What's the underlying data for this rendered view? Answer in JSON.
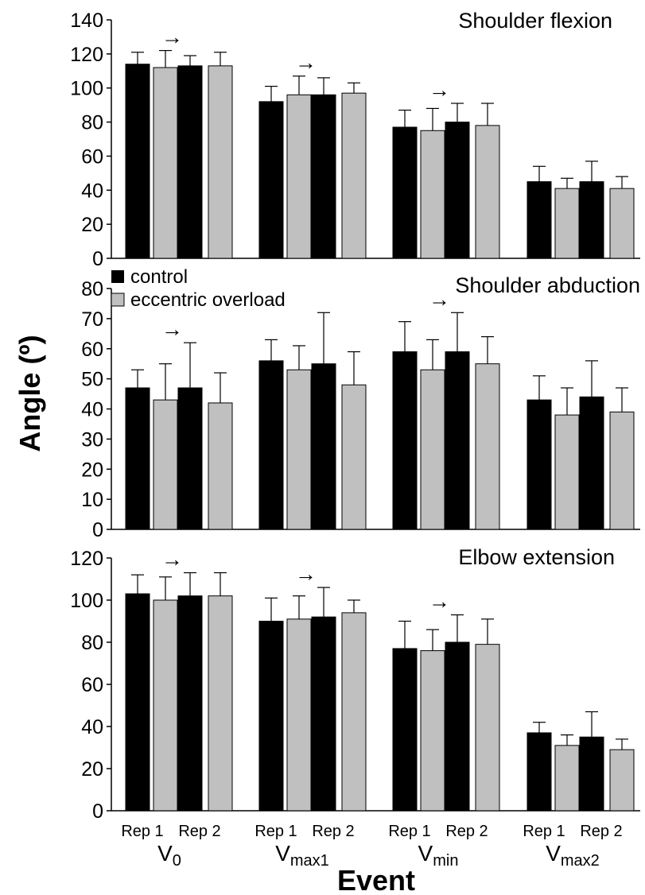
{
  "chart_data": {
    "type": "bar",
    "ylabel": "Angle (º)",
    "xlabel": "Event",
    "legend": {
      "placement": "top-left of middle panel",
      "entries": [
        {
          "label": "control",
          "color": "#000000"
        },
        {
          "label": "eccentric overload",
          "color": "#c0c0c0"
        }
      ]
    },
    "series_colors": [
      "#000000",
      "#c0c0c0"
    ],
    "rep_labels": [
      "Rep 1",
      "Rep 2"
    ],
    "groups": [
      {
        "main": "V",
        "sub": "0"
      },
      {
        "main": "V",
        "sub": "max1"
      },
      {
        "main": "V",
        "sub": "min"
      },
      {
        "main": "V",
        "sub": "max2"
      }
    ],
    "arrow_glyph": "→",
    "panels": [
      {
        "title": "Shoulder flexion",
        "ylim": [
          0,
          140
        ],
        "ticks": [
          "0",
          "20",
          "40",
          "60",
          "80",
          "100",
          "120",
          "140"
        ],
        "tick_values": [
          0,
          20,
          40,
          60,
          80,
          100,
          120,
          140
        ],
        "arrow_groups": [
          0,
          1,
          2
        ],
        "values": [
          [
            114,
            112,
            113,
            113
          ],
          [
            92,
            96,
            96,
            97
          ],
          [
            77,
            75,
            80,
            78
          ],
          [
            45,
            41,
            45,
            41
          ]
        ],
        "errors": [
          [
            7,
            10,
            6,
            8
          ],
          [
            9,
            11,
            10,
            6
          ],
          [
            10,
            13,
            11,
            13
          ],
          [
            9,
            6,
            12,
            7
          ]
        ]
      },
      {
        "title": "Shoulder abduction",
        "ylim": [
          0,
          80
        ],
        "ticks": [
          "0",
          "10",
          "20",
          "30",
          "40",
          "50",
          "60",
          "70",
          "80"
        ],
        "tick_values": [
          0,
          10,
          20,
          30,
          40,
          50,
          60,
          70,
          80
        ],
        "arrow_groups": [
          0,
          2
        ],
        "values": [
          [
            47,
            43,
            47,
            42
          ],
          [
            56,
            53,
            55,
            48
          ],
          [
            59,
            53,
            59,
            55
          ],
          [
            43,
            38,
            44,
            39
          ]
        ],
        "errors": [
          [
            6,
            12,
            15,
            10
          ],
          [
            7,
            8,
            17,
            11
          ],
          [
            10,
            10,
            13,
            9
          ],
          [
            8,
            9,
            12,
            8
          ]
        ]
      },
      {
        "title": "Elbow extension",
        "ylim": [
          0,
          120
        ],
        "ticks": [
          "0",
          "20",
          "40",
          "60",
          "80",
          "100",
          "120"
        ],
        "tick_values": [
          0,
          20,
          40,
          60,
          80,
          100,
          120
        ],
        "arrow_groups": [
          0,
          1,
          2
        ],
        "values": [
          [
            103,
            100,
            102,
            102
          ],
          [
            90,
            91,
            92,
            94
          ],
          [
            77,
            76,
            80,
            79
          ],
          [
            37,
            31,
            35,
            29
          ]
        ],
        "errors": [
          [
            9,
            11,
            11,
            11
          ],
          [
            11,
            11,
            14,
            6
          ],
          [
            13,
            10,
            13,
            12
          ],
          [
            5,
            5,
            12,
            5
          ]
        ]
      }
    ]
  }
}
